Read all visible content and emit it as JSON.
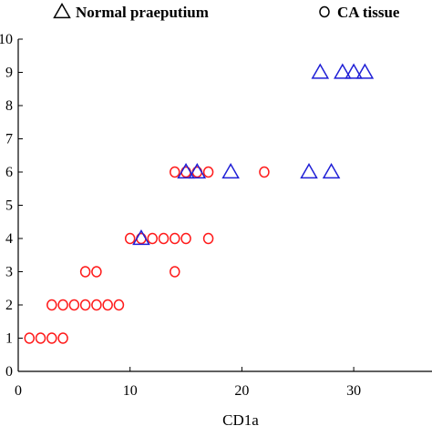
{
  "chart_data": {
    "type": "scatter",
    "title": "",
    "xlabel": "CD1a",
    "ylabel": "",
    "xlim": [
      0,
      37
    ],
    "ylim": [
      0,
      10
    ],
    "x_ticks": [
      0,
      10,
      20,
      30
    ],
    "y_ticks": [
      0,
      1,
      2,
      3,
      4,
      5,
      6,
      7,
      8,
      9,
      10
    ],
    "x_tick_labels": [
      "0",
      "10",
      "20",
      "30"
    ],
    "y_tick_labels": [
      "0",
      "1",
      "2",
      "3",
      "4",
      "5",
      "6",
      "7",
      "8",
      "9",
      "10"
    ],
    "grid": false,
    "legend_position": "top",
    "series": [
      {
        "name": "Normal praeputium",
        "marker": "triangle",
        "color": "#1f1fd6",
        "points": [
          [
            11,
            4
          ],
          [
            15,
            6
          ],
          [
            16,
            6
          ],
          [
            19,
            6
          ],
          [
            26,
            6
          ],
          [
            28,
            6
          ],
          [
            27,
            9
          ],
          [
            29,
            9
          ],
          [
            30,
            9
          ],
          [
            31,
            9
          ]
        ]
      },
      {
        "name": "CA tissue",
        "marker": "circle",
        "color": "#ff1a1a",
        "points": [
          [
            1,
            1
          ],
          [
            2,
            1
          ],
          [
            3,
            1
          ],
          [
            4,
            1
          ],
          [
            3,
            2
          ],
          [
            4,
            2
          ],
          [
            5,
            2
          ],
          [
            6,
            2
          ],
          [
            7,
            2
          ],
          [
            8,
            2
          ],
          [
            9,
            2
          ],
          [
            6,
            3
          ],
          [
            7,
            3
          ],
          [
            14,
            3
          ],
          [
            10,
            4
          ],
          [
            11,
            4
          ],
          [
            12,
            4
          ],
          [
            13,
            4
          ],
          [
            14,
            4
          ],
          [
            15,
            4
          ],
          [
            17,
            4
          ],
          [
            14,
            6
          ],
          [
            15,
            6
          ],
          [
            16,
            6
          ],
          [
            17,
            6
          ],
          [
            22,
            6
          ]
        ]
      }
    ]
  }
}
